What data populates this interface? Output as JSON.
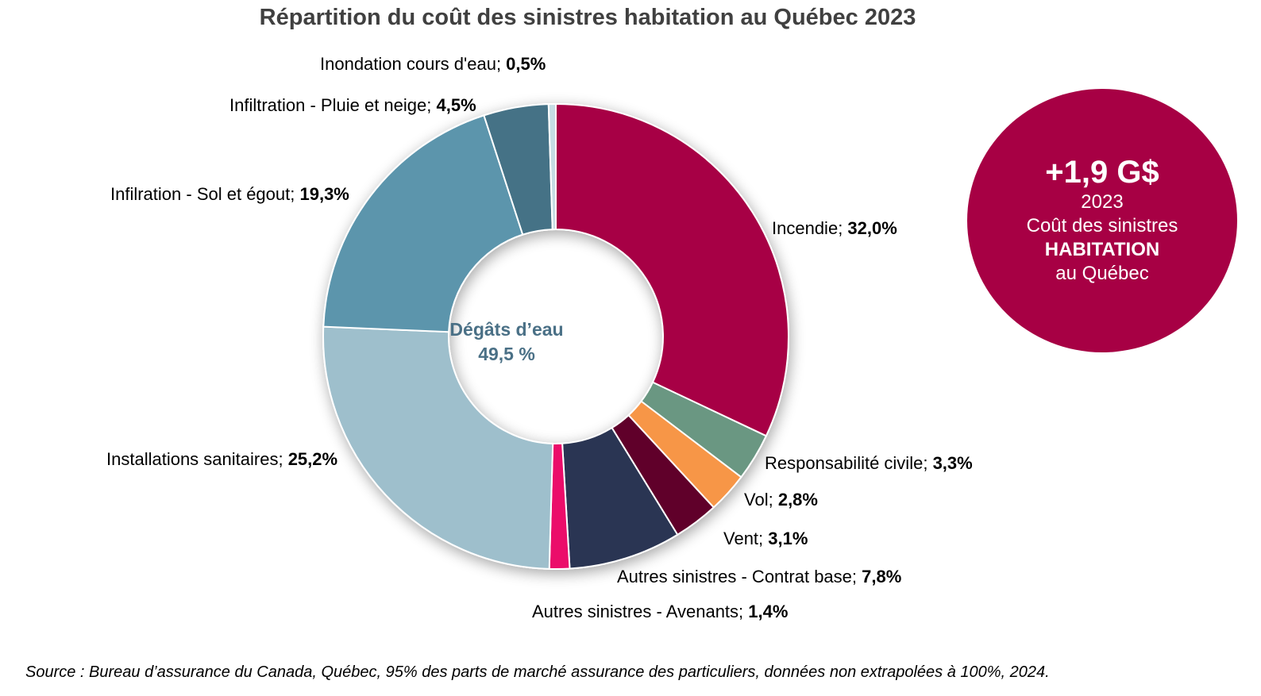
{
  "title": "Répartition du coût des sinistres habitation au Québec  2023",
  "center_label": {
    "line1": "Dégâts d’eau",
    "line2": "49,5 %"
  },
  "badge": {
    "amount": "+1,9 G$",
    "year": "2023",
    "line1": "Coût des sinistres",
    "line2": "HABITATION",
    "line3": "au Québec",
    "color": "#a70044"
  },
  "source": "Source : Bureau d’assurance du Canada, Québec, 95% des parts de marché assurance des particuliers, données non extrapolées à 100%, 2024.",
  "chart_data": {
    "type": "pie",
    "donut": true,
    "title": "Répartition du coût des sinistres habitation au Québec  2023",
    "slices": [
      {
        "label": "Incendie",
        "value": 32.0,
        "display": "32,0%",
        "color": "#a70044"
      },
      {
        "label": "Responsabilité civile",
        "value": 3.3,
        "display": "3,3%",
        "color": "#6a9782"
      },
      {
        "label": "Vol",
        "value": 2.8,
        "display": "2,8%",
        "color": "#f79646"
      },
      {
        "label": "Vent",
        "value": 3.1,
        "display": "3,1%",
        "color": "#60002c"
      },
      {
        "label": "Autres sinistres - Contrat base",
        "value": 7.8,
        "display": "7,8%",
        "color": "#2c3552"
      },
      {
        "label": "Autres sinistres - Avenants",
        "value": 1.4,
        "display": "1,4%",
        "color": "#eb0f6a"
      },
      {
        "label": "Installations sanitaires",
        "value": 25.2,
        "display": "25,2%",
        "color": "#9ebfcc"
      },
      {
        "label": "Infilration - Sol et égout",
        "value": 19.3,
        "display": "19,3%",
        "color": "#5b95ac"
      },
      {
        "label": "Infiltration - Pluie et neige",
        "value": 4.5,
        "display": "4,5%",
        "color": "#447286"
      },
      {
        "label": "Inondation cours d'eau",
        "value": 0.5,
        "display": "0,5%",
        "color": "#c6dde4"
      }
    ]
  }
}
